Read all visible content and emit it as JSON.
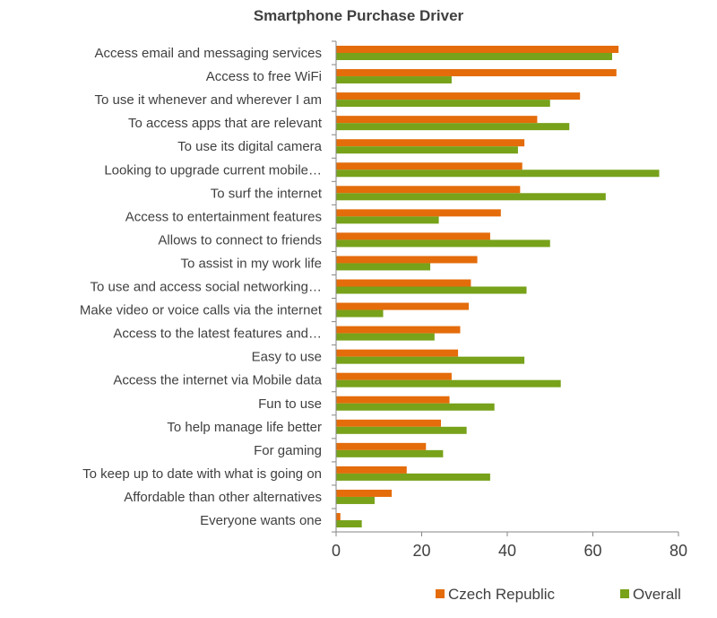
{
  "chart_data": {
    "type": "bar",
    "orientation": "horizontal",
    "title": "Smartphone Purchase Driver",
    "xlabel": "",
    "ylabel": "",
    "xlim": [
      0,
      80
    ],
    "xticks": [
      0,
      20,
      40,
      60,
      80
    ],
    "grid": false,
    "legend_position": "bottom-right",
    "categories": [
      "Access email and messaging services",
      "Access to free WiFi",
      "To use it whenever and wherever I am",
      "To access apps that are relevant",
      "To use its digital camera",
      "Looking to upgrade current mobile…",
      "To surf the internet",
      "Access to entertainment features",
      "Allows to connect to friends",
      "To assist in my work life",
      "To use and access social networking…",
      "Make video or voice calls via the internet",
      "Access to the latest features and…",
      "Easy to use",
      "Access the internet via Mobile data",
      "Fun to use",
      "To help manage life better",
      "For gaming",
      "To keep up to date with what is going on",
      "Affordable than other alternatives",
      "Everyone wants one"
    ],
    "series": [
      {
        "name": "Czech Republic",
        "color": "#e46c0a",
        "values": [
          66,
          65.5,
          57,
          47,
          44,
          43.5,
          43,
          38.5,
          36,
          33,
          31.5,
          31,
          29,
          28.5,
          27,
          26.5,
          24.5,
          21,
          16.5,
          13,
          1
        ]
      },
      {
        "name": "Overall",
        "color": "#77a21a",
        "values": [
          64.5,
          27,
          50,
          54.5,
          42.5,
          75.5,
          63,
          24,
          50,
          22,
          44.5,
          11,
          23,
          44,
          52.5,
          37,
          30.5,
          25,
          36,
          9,
          6
        ]
      }
    ]
  }
}
